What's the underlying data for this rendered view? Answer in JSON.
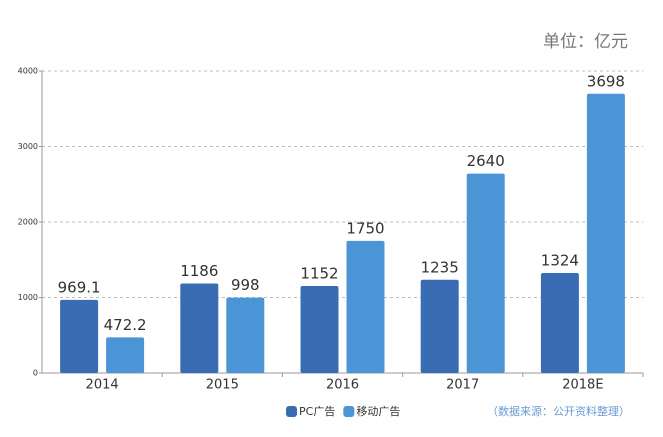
{
  "chart_data": {
    "type": "bar",
    "unit": "单位：亿元",
    "source": "（数据来源：公开资料整理）",
    "categories": [
      "2014",
      "2015",
      "2016",
      "2017",
      "2018E"
    ],
    "series": [
      {
        "name": "PC广告",
        "color": "#3a6cb4",
        "values": [
          969.1,
          1186,
          1152,
          1235,
          1324
        ]
      },
      {
        "name": "移动广告",
        "color": "#4b94d6",
        "values": [
          472.2,
          998,
          1750,
          2640,
          3698
        ]
      }
    ],
    "ylim": [
      0,
      4000
    ],
    "yticks": [
      0,
      1000,
      2000,
      3000,
      4000
    ],
    "grid": true
  }
}
